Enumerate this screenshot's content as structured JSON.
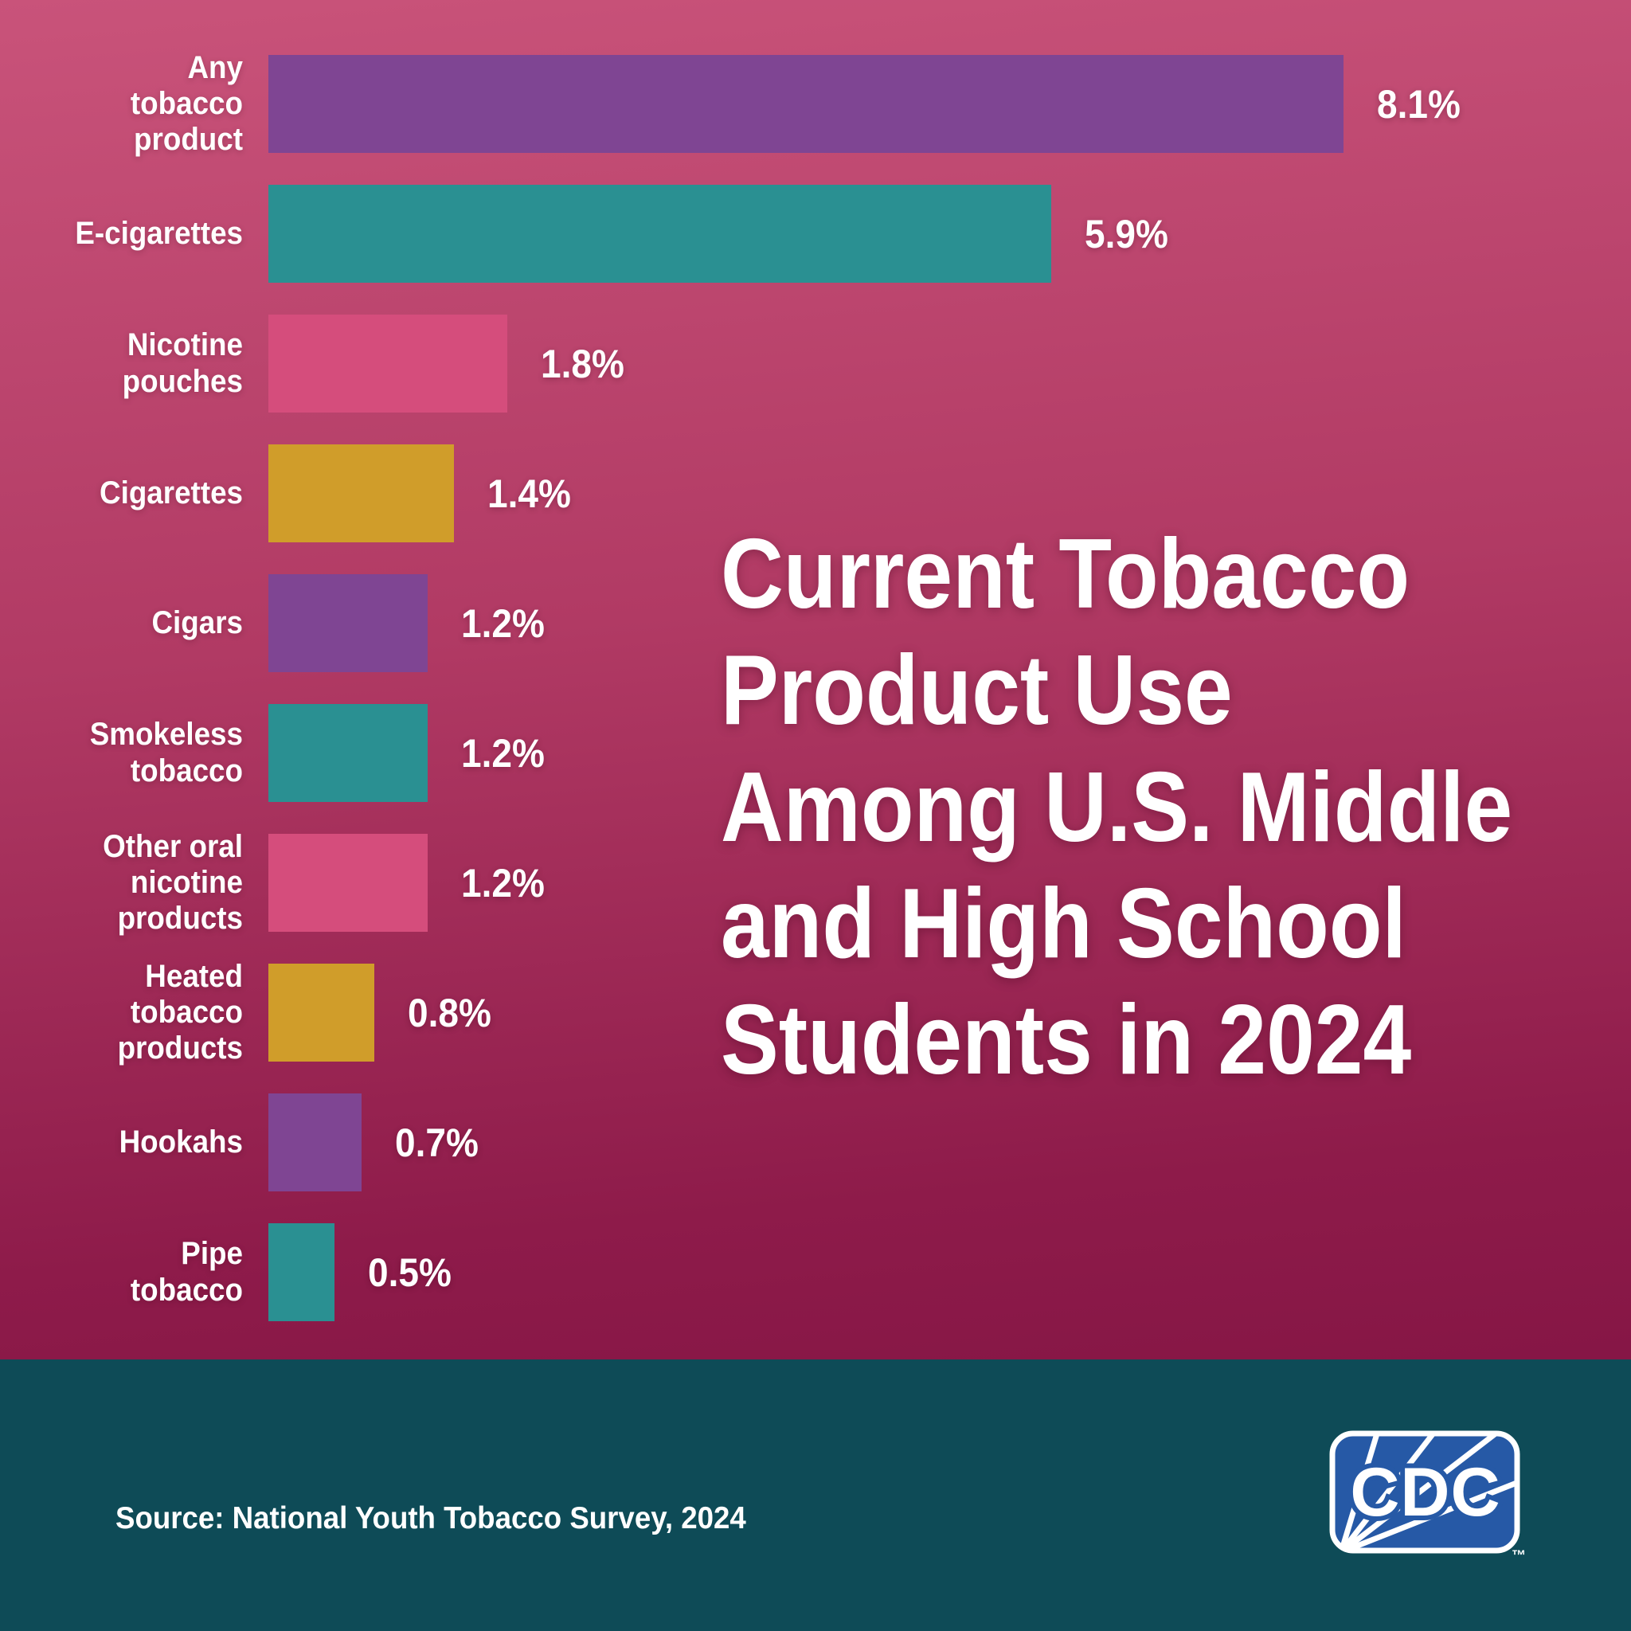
{
  "colors": {
    "background_top": "#c9537a",
    "background_bottom": "#7c1040",
    "footer_band": "#0e4b57",
    "text": "#ffffff",
    "bar_purple": "#7f4593",
    "bar_teal": "#2a9092",
    "bar_pink": "#d54d7c",
    "bar_gold": "#d09d2a",
    "cdc_blue": "#2659a6"
  },
  "title": {
    "lines": "Current Tobacco\nProduct Use\nAmong U.S. Middle\nand High School\nStudents in 2024"
  },
  "chart_data": {
    "type": "bar",
    "orientation": "horizontal",
    "title": "Current Tobacco Product Use Among U.S. Middle and High School Students in 2024",
    "categories": [
      "Any tobacco product",
      "E-cigarettes",
      "Nicotine pouches",
      "Cigarettes",
      "Cigars",
      "Smokeless tobacco",
      "Other oral nicotine products",
      "Heated tobacco products",
      "Hookahs",
      "Pipe tobacco"
    ],
    "categories_wrapped": [
      "Any\ntobacco\nproduct",
      "E-cigarettes",
      "Nicotine\npouches",
      "Cigarettes",
      "Cigars",
      "Smokeless\ntobacco",
      "Other oral\nnicotine\nproducts",
      "Heated\ntobacco\nproducts",
      "Hookahs",
      "Pipe\ntobacco"
    ],
    "values": [
      8.1,
      5.9,
      1.8,
      1.4,
      1.2,
      1.2,
      1.2,
      0.8,
      0.7,
      0.5
    ],
    "value_labels": [
      "8.1%",
      "5.9%",
      "1.8%",
      "1.4%",
      "1.2%",
      "1.2%",
      "1.2%",
      "0.8%",
      "0.7%",
      "0.5%"
    ],
    "bar_color_names": [
      "purple",
      "teal",
      "pink",
      "gold",
      "purple",
      "teal",
      "pink",
      "gold",
      "purple",
      "teal"
    ],
    "bar_colors": [
      "#7f4593",
      "#2a9092",
      "#d54d7c",
      "#d09d2a",
      "#7f4593",
      "#2a9092",
      "#d54d7c",
      "#d09d2a",
      "#7f4593",
      "#2a9092"
    ],
    "xlim": [
      0,
      8.1
    ],
    "axis_visible": false,
    "grid": false,
    "legend": null
  },
  "footer": {
    "source": "Source: National Youth Tobacco Survey, 2024",
    "logo": {
      "text": "CDC",
      "trademark": "™"
    }
  }
}
